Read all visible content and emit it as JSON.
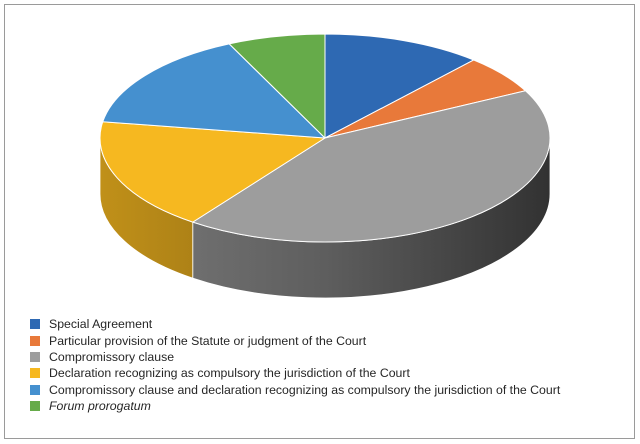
{
  "chart_data": {
    "type": "pie",
    "title": "",
    "style": "3d",
    "legend_position": "bottom-left",
    "slices": [
      {
        "label": "Special Agreement",
        "value": 11.5,
        "color": "#2e69b3"
      },
      {
        "label": "Particular provision of the Statute or judgment of the Court",
        "value": 6.0,
        "color": "#e8793a"
      },
      {
        "label": "Compromissory clause",
        "value": 42.5,
        "color": "#9d9d9d"
      },
      {
        "label": "Declaration recognizing as compulsory the jurisdiction of the Court",
        "value": 17.5,
        "color": "#f6b820"
      },
      {
        "label": "Compromissory clause and declaration recognizing as compulsory the jurisdiction of the Court",
        "value": 15.5,
        "color": "#4590cf"
      },
      {
        "label": "Forum prorogatum",
        "value": 7.0,
        "color": "#66ab4a",
        "italic": true
      }
    ]
  }
}
